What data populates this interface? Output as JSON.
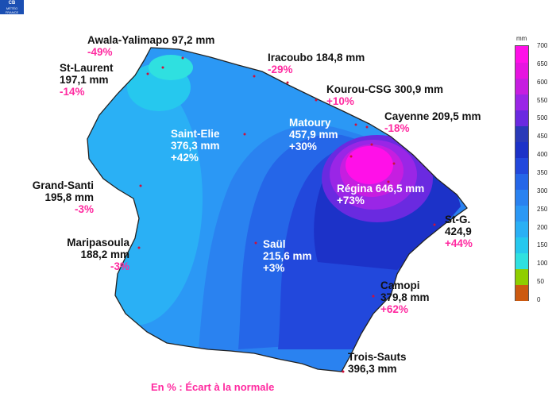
{
  "logo": {
    "mark": "CB",
    "text": "MÉTÉO FRANCE"
  },
  "legend": {
    "unit": "mm",
    "ticks": [
      "700",
      "650",
      "600",
      "550",
      "500",
      "450",
      "400",
      "350",
      "300",
      "250",
      "200",
      "150",
      "100",
      "50",
      "0"
    ],
    "colors": [
      "#cc5a10",
      "#8fce00",
      "#2fe0e0",
      "#26c8ee",
      "#2ab0f5",
      "#2b98f5",
      "#2a82f0",
      "#2566e8",
      "#2248dc",
      "#1c32c8",
      "#2a3ab8",
      "#6a2ae0",
      "#9a26e6",
      "#c61ee0",
      "#e614e0",
      "#ff10e8"
    ]
  },
  "stations": [
    {
      "id": "awala",
      "name": "Awala-Yalimapo 97,2 mm",
      "anomaly": "-49%"
    },
    {
      "id": "stlaurent",
      "name": "St-Laurent",
      "value": "197,1 mm",
      "anomaly": "-14%"
    },
    {
      "id": "iracoubo",
      "name": "Iracoubo 184,8 mm",
      "anomaly": "-29%"
    },
    {
      "id": "kourou",
      "name": "Kourou-CSG 300,9 mm",
      "anomaly": "+10%"
    },
    {
      "id": "cayenne",
      "name": "Cayenne 209,5 mm",
      "anomaly": "-18%"
    },
    {
      "id": "matoury",
      "name": "Matoury",
      "value": "457,9 mm",
      "anomaly": "+30%"
    },
    {
      "id": "saintelie",
      "name": "Saint-Elie",
      "value": "376,3 mm",
      "anomaly": "+42%"
    },
    {
      "id": "grandsanti",
      "name": "Grand-Santi",
      "value": "195,8 mm",
      "anomaly": "-3%"
    },
    {
      "id": "regina",
      "name": "Régina 646,5 mm",
      "anomaly": "+73%"
    },
    {
      "id": "stg",
      "name": "St-G.",
      "value": "424,9",
      "anomaly": "+44%"
    },
    {
      "id": "maripasoula",
      "name": "Maripasoula",
      "value": "188,2 mm",
      "anomaly": "-3%"
    },
    {
      "id": "saul",
      "name": "Saül",
      "value": "215,6 mm",
      "anomaly": "+3%"
    },
    {
      "id": "camopi",
      "name": "Camopi",
      "value": "379,8 mm",
      "anomaly": "+62%"
    },
    {
      "id": "troissauts",
      "name": "Trois-Sauts",
      "value": "396,3 mm"
    }
  ],
  "footer": "En % : Écart à la normale"
}
